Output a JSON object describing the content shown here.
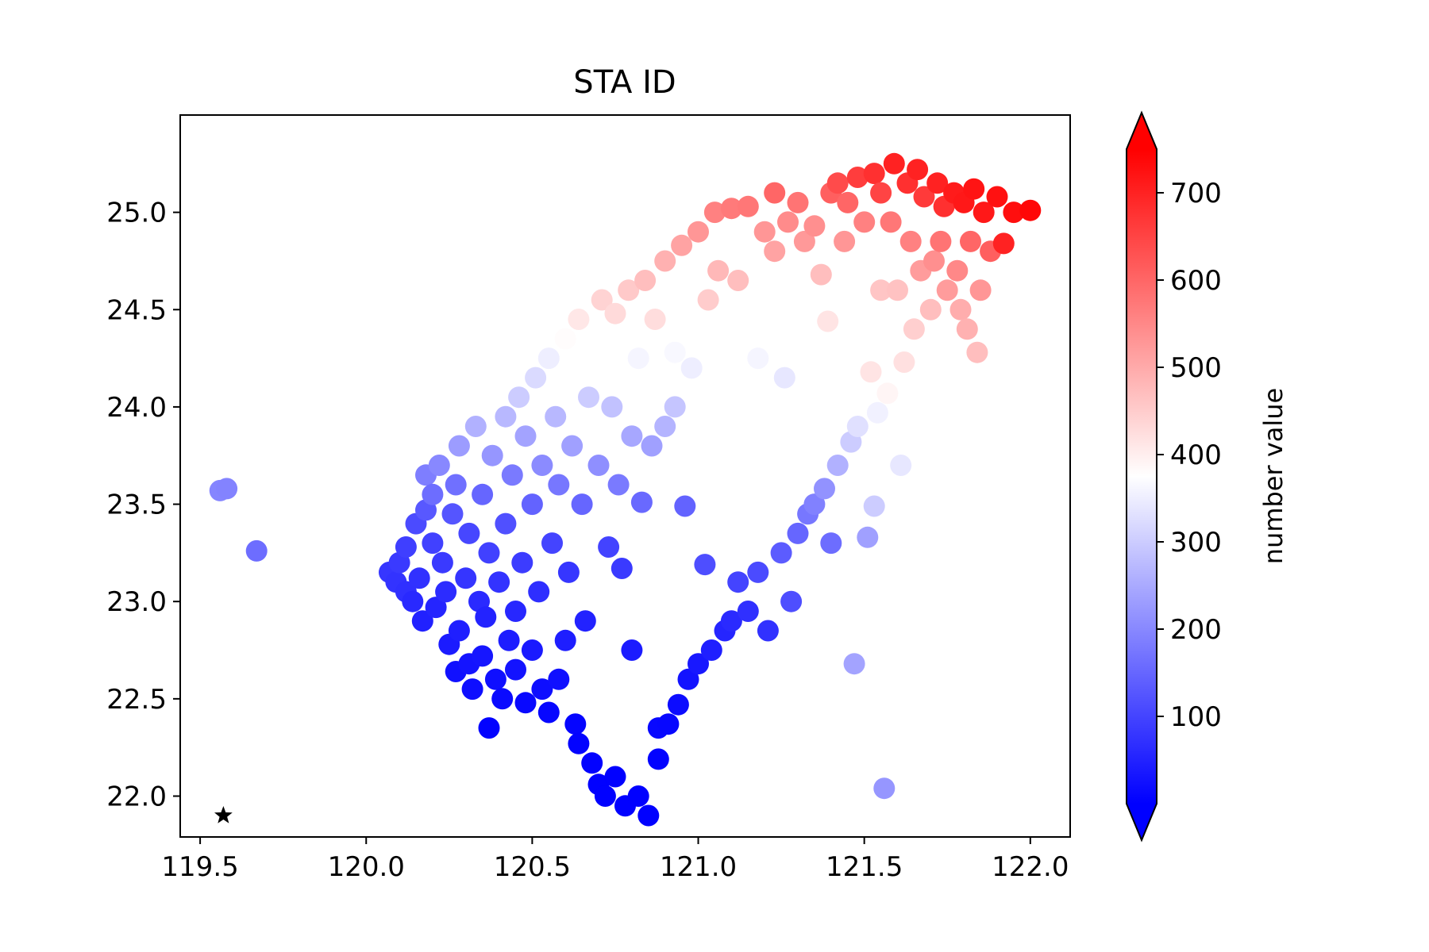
{
  "chart_data": {
    "type": "scatter",
    "title": "STA ID",
    "xlabel": "",
    "ylabel": "",
    "xlim": [
      119.44,
      122.12
    ],
    "ylim": [
      21.79,
      25.5
    ],
    "xticks": [
      "119.5",
      "120.0",
      "120.5",
      "121.0",
      "121.5",
      "122.0"
    ],
    "xtick_values": [
      119.5,
      120.0,
      120.5,
      121.0,
      121.5,
      122.0
    ],
    "yticks": [
      "22.0",
      "22.5",
      "23.0",
      "23.5",
      "24.0",
      "24.5",
      "25.0"
    ],
    "ytick_values": [
      22.0,
      22.5,
      23.0,
      23.5,
      24.0,
      24.5,
      25.0
    ],
    "colorbar": {
      "label": "number value",
      "cmap": "bwr",
      "vmin": 0,
      "vmax": 750,
      "ticks": [
        "100",
        "200",
        "300",
        "400",
        "500",
        "600",
        "700"
      ],
      "tick_values": [
        100,
        200,
        300,
        400,
        500,
        600,
        700
      ],
      "extend": "both"
    },
    "marker_star": {
      "x": 119.57,
      "y": 21.9,
      "symbol": "star",
      "color": "#000000"
    },
    "points": [
      [
        119.56,
        23.57,
        195
      ],
      [
        119.58,
        23.58,
        192
      ],
      [
        119.67,
        23.26,
        160
      ],
      [
        120.07,
        23.15,
        80
      ],
      [
        120.09,
        23.1,
        75
      ],
      [
        120.1,
        23.2,
        85
      ],
      [
        120.12,
        23.05,
        70
      ],
      [
        120.12,
        23.28,
        92
      ],
      [
        120.14,
        23.0,
        60
      ],
      [
        120.15,
        23.4,
        110
      ],
      [
        120.16,
        23.12,
        72
      ],
      [
        120.17,
        22.9,
        48
      ],
      [
        120.18,
        23.47,
        130
      ],
      [
        120.18,
        23.65,
        185
      ],
      [
        120.2,
        23.3,
        95
      ],
      [
        120.2,
        23.55,
        160
      ],
      [
        120.21,
        22.97,
        55
      ],
      [
        120.22,
        23.7,
        200
      ],
      [
        120.23,
        23.2,
        85
      ],
      [
        120.24,
        23.05,
        65
      ],
      [
        120.25,
        22.78,
        40
      ],
      [
        120.26,
        23.45,
        125
      ],
      [
        120.27,
        22.64,
        25
      ],
      [
        120.27,
        23.6,
        165
      ],
      [
        120.28,
        23.8,
        230
      ],
      [
        120.28,
        22.85,
        45
      ],
      [
        120.3,
        23.12,
        78
      ],
      [
        120.31,
        22.68,
        30
      ],
      [
        120.31,
        23.35,
        105
      ],
      [
        120.32,
        22.55,
        20
      ],
      [
        120.33,
        23.9,
        260
      ],
      [
        120.34,
        23.0,
        62
      ],
      [
        120.35,
        23.55,
        150
      ],
      [
        120.35,
        22.72,
        32
      ],
      [
        120.36,
        22.92,
        52
      ],
      [
        120.37,
        22.35,
        5
      ],
      [
        120.37,
        23.25,
        95
      ],
      [
        120.38,
        23.75,
        220
      ],
      [
        120.39,
        22.6,
        22
      ],
      [
        120.4,
        23.1,
        75
      ],
      [
        120.41,
        22.5,
        15
      ],
      [
        120.42,
        23.95,
        270
      ],
      [
        120.42,
        23.4,
        118
      ],
      [
        120.43,
        22.8,
        42
      ],
      [
        120.44,
        23.65,
        180
      ],
      [
        120.45,
        22.65,
        28
      ],
      [
        120.45,
        22.95,
        58
      ],
      [
        120.46,
        24.05,
        300
      ],
      [
        120.47,
        23.2,
        88
      ],
      [
        120.48,
        22.48,
        12
      ],
      [
        120.48,
        23.85,
        240
      ],
      [
        120.5,
        23.5,
        145
      ],
      [
        120.5,
        22.75,
        38
      ],
      [
        120.51,
        24.15,
        320
      ],
      [
        120.52,
        23.05,
        68
      ],
      [
        120.53,
        22.55,
        20
      ],
      [
        120.53,
        23.7,
        205
      ],
      [
        120.55,
        24.25,
        350
      ],
      [
        120.55,
        22.43,
        10
      ],
      [
        120.56,
        23.3,
        100
      ],
      [
        120.57,
        23.95,
        270
      ],
      [
        120.58,
        22.6,
        24
      ],
      [
        120.58,
        23.6,
        175
      ],
      [
        120.6,
        24.35,
        380
      ],
      [
        120.6,
        22.8,
        44
      ],
      [
        120.61,
        23.15,
        80
      ],
      [
        120.62,
        23.8,
        235
      ],
      [
        120.63,
        22.37,
        8
      ],
      [
        120.64,
        24.45,
        410
      ],
      [
        120.64,
        22.27,
        4
      ],
      [
        120.65,
        23.5,
        150
      ],
      [
        120.66,
        22.9,
        50
      ],
      [
        120.67,
        24.05,
        300
      ],
      [
        120.68,
        22.17,
        3
      ],
      [
        120.69,
        24.3,
        375
      ],
      [
        120.7,
        23.7,
        210
      ],
      [
        120.7,
        22.06,
        2
      ],
      [
        120.71,
        24.55,
        440
      ],
      [
        120.72,
        22.0,
        1
      ],
      [
        120.73,
        23.28,
        98
      ],
      [
        120.74,
        24.0,
        285
      ],
      [
        120.75,
        24.48,
        430
      ],
      [
        120.75,
        22.1,
        2
      ],
      [
        120.76,
        23.6,
        180
      ],
      [
        120.77,
        23.17,
        85
      ],
      [
        120.78,
        21.95,
        1
      ],
      [
        120.79,
        24.6,
        455
      ],
      [
        120.8,
        23.85,
        245
      ],
      [
        120.8,
        22.75,
        40
      ],
      [
        120.82,
        24.25,
        360
      ],
      [
        120.82,
        22.0,
        2
      ],
      [
        120.83,
        23.51,
        155
      ],
      [
        120.84,
        24.65,
        470
      ],
      [
        120.85,
        21.9,
        1
      ],
      [
        120.86,
        23.8,
        235
      ],
      [
        120.87,
        24.45,
        425
      ],
      [
        120.88,
        22.19,
        5
      ],
      [
        120.88,
        22.35,
        12
      ],
      [
        120.9,
        24.75,
        490
      ],
      [
        120.9,
        23.9,
        265
      ],
      [
        120.91,
        22.37,
        10
      ],
      [
        120.93,
        24.0,
        290
      ],
      [
        120.93,
        24.28,
        365
      ],
      [
        120.94,
        22.47,
        18
      ],
      [
        120.95,
        24.83,
        510
      ],
      [
        120.96,
        23.49,
        145
      ],
      [
        120.97,
        22.6,
        28
      ],
      [
        120.98,
        24.2,
        350
      ],
      [
        121.0,
        24.9,
        530
      ],
      [
        121.0,
        22.68,
        35
      ],
      [
        121.02,
        23.19,
        115
      ],
      [
        121.03,
        24.55,
        450
      ],
      [
        121.04,
        22.75,
        45
      ],
      [
        121.05,
        25.0,
        560
      ],
      [
        121.06,
        24.7,
        480
      ],
      [
        121.08,
        22.85,
        55
      ],
      [
        121.1,
        25.02,
        570
      ],
      [
        121.1,
        22.9,
        62
      ],
      [
        121.12,
        24.65,
        470
      ],
      [
        121.12,
        23.1,
        100
      ],
      [
        121.15,
        25.03,
        575
      ],
      [
        121.15,
        22.95,
        70
      ],
      [
        121.18,
        24.25,
        360
      ],
      [
        121.18,
        23.15,
        110
      ],
      [
        121.2,
        24.9,
        530
      ],
      [
        121.21,
        22.85,
        72
      ],
      [
        121.23,
        25.1,
        600
      ],
      [
        121.23,
        24.8,
        510
      ],
      [
        121.25,
        23.25,
        135
      ],
      [
        121.26,
        24.15,
        340
      ],
      [
        121.27,
        24.95,
        545
      ],
      [
        121.28,
        23.0,
        115
      ],
      [
        121.3,
        23.35,
        150
      ],
      [
        121.3,
        25.05,
        580
      ],
      [
        121.32,
        24.85,
        525
      ],
      [
        121.33,
        23.45,
        175
      ],
      [
        121.35,
        23.5,
        190
      ],
      [
        121.35,
        24.93,
        540
      ],
      [
        121.37,
        24.68,
        470
      ],
      [
        121.38,
        23.58,
        215
      ],
      [
        121.39,
        24.44,
        415
      ],
      [
        121.4,
        25.1,
        610
      ],
      [
        121.4,
        23.3,
        160
      ],
      [
        121.42,
        25.15,
        640
      ],
      [
        121.42,
        23.7,
        260
      ],
      [
        121.44,
        24.85,
        530
      ],
      [
        121.45,
        25.05,
        600
      ],
      [
        121.46,
        23.82,
        300
      ],
      [
        121.47,
        22.68,
        240
      ],
      [
        121.48,
        25.18,
        660
      ],
      [
        121.48,
        23.9,
        330
      ],
      [
        121.5,
        24.95,
        560
      ],
      [
        121.51,
        23.33,
        235
      ],
      [
        121.52,
        24.18,
        415
      ],
      [
        121.53,
        25.2,
        680
      ],
      [
        121.53,
        23.49,
        300
      ],
      [
        121.54,
        23.97,
        355
      ],
      [
        121.55,
        24.6,
        460
      ],
      [
        121.55,
        25.1,
        650
      ],
      [
        121.56,
        22.04,
        220
      ],
      [
        121.57,
        24.07,
        390
      ],
      [
        121.58,
        24.95,
        575
      ],
      [
        121.59,
        25.25,
        700
      ],
      [
        121.6,
        24.6,
        465
      ],
      [
        121.61,
        23.7,
        340
      ],
      [
        121.62,
        24.23,
        420
      ],
      [
        121.63,
        25.15,
        680
      ],
      [
        121.64,
        24.85,
        560
      ],
      [
        121.65,
        24.4,
        445
      ],
      [
        121.66,
        25.22,
        700
      ],
      [
        121.67,
        24.7,
        520
      ],
      [
        121.68,
        25.08,
        665
      ],
      [
        121.7,
        24.5,
        470
      ],
      [
        121.71,
        24.75,
        540
      ],
      [
        121.72,
        25.15,
        700
      ],
      [
        121.73,
        24.85,
        580
      ],
      [
        121.74,
        25.03,
        680
      ],
      [
        121.75,
        24.6,
        520
      ],
      [
        121.77,
        25.1,
        710
      ],
      [
        121.78,
        24.7,
        550
      ],
      [
        121.79,
        24.5,
        495
      ],
      [
        121.8,
        25.05,
        715
      ],
      [
        121.81,
        24.4,
        490
      ],
      [
        121.82,
        24.85,
        600
      ],
      [
        121.83,
        25.12,
        720
      ],
      [
        121.84,
        24.28,
        470
      ],
      [
        121.85,
        24.6,
        530
      ],
      [
        121.86,
        25.0,
        715
      ],
      [
        121.88,
        24.8,
        610
      ],
      [
        121.9,
        25.08,
        725
      ],
      [
        121.92,
        24.84,
        700
      ],
      [
        121.95,
        25.0,
        730
      ],
      [
        122.0,
        25.01,
        740
      ]
    ]
  }
}
